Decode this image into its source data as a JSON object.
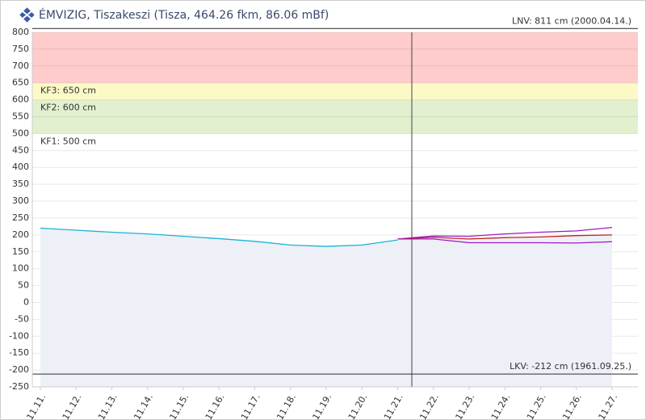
{
  "header": {
    "title": "ÉMVIZIG, Tiszakeszi (Tisza, 464.26 fkm, 86.06 mBf)"
  },
  "chart_data": {
    "type": "line",
    "categories": [
      "11.11.",
      "11.12.",
      "11.13.",
      "11.14.",
      "11.15.",
      "11.16.",
      "11.17.",
      "11.18.",
      "11.19.",
      "11.20.",
      "11.21.",
      "11.22.",
      "11.23.",
      "11.24.",
      "11.25.",
      "11.26.",
      "11.27."
    ],
    "ylim": [
      -250,
      800
    ],
    "yticks": [
      -250,
      -200,
      -150,
      -100,
      -50,
      0,
      50,
      100,
      150,
      200,
      250,
      300,
      350,
      400,
      450,
      500,
      550,
      600,
      650,
      700,
      750,
      800
    ],
    "grid": true,
    "bands": [
      {
        "label": "KF1: 500 cm",
        "value": 500,
        "color": "#e2f0cf"
      },
      {
        "label": "KF2: 600 cm",
        "value": 600,
        "color": "#fbfac7"
      },
      {
        "label": "KF3: 650 cm",
        "value": 650,
        "color": "#ffcccc"
      }
    ],
    "reference_lines": [
      {
        "label": "LNV: 811 cm (2000.04.14.)",
        "value": 811
      },
      {
        "label": "LKV: -212 cm (1961.09.25.)",
        "value": -212
      }
    ],
    "series": [
      {
        "color": "#17b4d4",
        "values": [
          220,
          214,
          208,
          203,
          196,
          189,
          181,
          170,
          166,
          170,
          185,
          null,
          null,
          null,
          null,
          null,
          null
        ]
      },
      {
        "color": "#9b1bc4",
        "values": [
          null,
          null,
          null,
          null,
          null,
          null,
          null,
          null,
          null,
          null,
          188,
          197,
          196,
          203,
          208,
          212,
          222
        ]
      },
      {
        "color": "#c02020",
        "values": [
          null,
          null,
          null,
          null,
          null,
          null,
          null,
          null,
          null,
          null,
          188,
          193,
          188,
          192,
          194,
          198,
          200
        ]
      },
      {
        "color": "#9b1bc4",
        "values": [
          null,
          null,
          null,
          null,
          null,
          null,
          null,
          null,
          null,
          null,
          188,
          188,
          177,
          177,
          177,
          176,
          180
        ]
      }
    ]
  }
}
